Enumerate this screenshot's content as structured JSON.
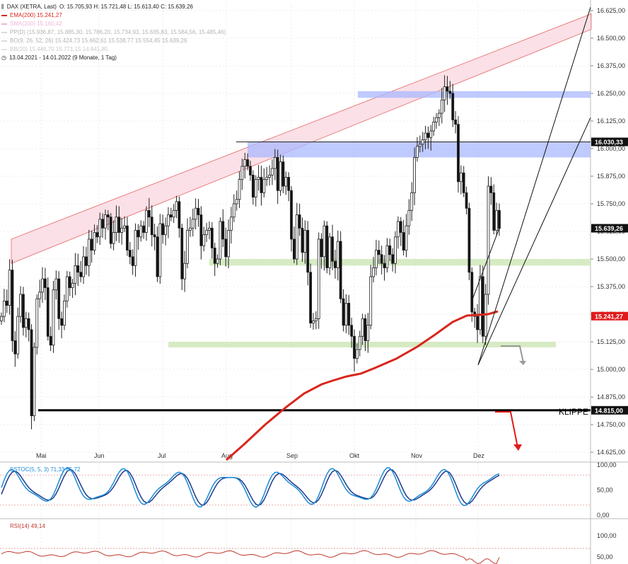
{
  "legend": {
    "instrument": "DAX (XETRA, Last)",
    "ohlc": "O: 15.705,93  H: 15.721,48  L: 15.613,40  C: 15.639,26",
    "ema": "EMA(200)  15.241,27",
    "sma": "SMA(200)  15.160,42",
    "pp": "PP(D)  (15.936,87, 15.885,30, 15.786,20, 15.734,93, 15.635,83, 15.584,56, 15.485,46)",
    "bo": "BO(9, 26, 52, 26)  15.424,73  15.662,61  15.538,77  15.554,45  15.639,26",
    "fib": "BB(20)  15.446,70  15.771,15  14.841,85",
    "range": "13.04.2021 - 14.01.2022  (9 Monate, 1 Tag)"
  },
  "colors": {
    "ema": "#d9261c",
    "channel_fill": "#f9d5df",
    "channel_line": "#e88080",
    "blue_zone": "#aab8ff",
    "green_zone": "#cfe8b8",
    "stoch_fast": "#1a8bd8",
    "stoch_slow": "#1e3a8a",
    "rsi": "#c0392b"
  },
  "chart_data": {
    "type": "candlestick",
    "price_axis_ticks": [
      "16.625,00",
      "16.500,00",
      "16.375,00",
      "16.250,00",
      "16.125,00",
      "16.000,00",
      "15.875,00",
      "15.750,00",
      "15.625,00",
      "15.500,00",
      "15.375,00",
      "15.250,00",
      "15.125,00",
      "15.000,00",
      "14.875,00",
      "14.750,00",
      "14.625,00"
    ],
    "ylim": [
      14590,
      16660
    ],
    "month_labels": [
      "Mai",
      "Jun",
      "Jul",
      "Aug",
      "Sep",
      "Okt",
      "Nov",
      "Dez"
    ],
    "price_markers": [
      {
        "label": "16.030,33",
        "value": 16030.33,
        "style": "dark"
      },
      {
        "label": "15.639,26",
        "value": 15639.26,
        "style": "dark"
      },
      {
        "label": "15.241,27",
        "value": 15241.27,
        "style": "red"
      },
      {
        "label": "14.815,00",
        "value": 14815.0,
        "style": "dark"
      }
    ],
    "annotation": "KLIPPE",
    "closes": [
      15240,
      15310,
      15290,
      15450,
      15130,
      15070,
      15240,
      15340,
      15190,
      15230,
      15180,
      14790,
      15100,
      15320,
      15350,
      15410,
      15370,
      15150,
      15110,
      15360,
      15410,
      15230,
      15200,
      15310,
      15420,
      15370,
      15390,
      15470,
      15440,
      15420,
      15510,
      15470,
      15590,
      15540,
      15620,
      15600,
      15680,
      15640,
      15700,
      15690,
      15570,
      15620,
      15690,
      15620,
      15640,
      15650,
      15540,
      15510,
      15470,
      15630,
      15600,
      15650,
      15620,
      15720,
      15690,
      15610,
      15600,
      15420,
      15660,
      15610,
      15650,
      15700,
      15690,
      15720,
      15760,
      15640,
      15410,
      15480,
      15630,
      15640,
      15680,
      15730,
      15700,
      15560,
      15610,
      15630,
      15640,
      15550,
      15480,
      15500,
      15670,
      15590,
      15510,
      15630,
      15690,
      15750,
      15770,
      15860,
      15920,
      15950,
      15920,
      15880,
      15780,
      15860,
      15870,
      15800,
      15860,
      15870,
      15880,
      15910,
      15960,
      15810,
      15940,
      15830,
      15870,
      15810,
      15590,
      15500,
      15700,
      15640,
      15530,
      15630,
      15440,
      15210,
      15220,
      15230,
      15590,
      15510,
      15650,
      15460,
      15600,
      15490,
      15460,
      15580,
      15320,
      15200,
      15300,
      15200,
      15150,
      15050,
      15090,
      15150,
      15230,
      15130,
      15200,
      15420,
      15460,
      15540,
      15520,
      15480,
      15460,
      15560,
      15520,
      15480,
      15600,
      15670,
      15620,
      15540,
      15650,
      15720,
      15800,
      15960,
      16010,
      16020,
      16040,
      16070,
      16050,
      16080,
      16120,
      16140,
      16160,
      16220,
      16280,
      16260,
      16250,
      16130,
      16110,
      15850,
      15890,
      15800,
      15730,
      15440,
      15260,
      15240,
      15180,
      15420,
      15150,
      15340,
      15830,
      15800,
      15630,
      15720,
      15639
    ],
    "channel": {
      "upper_start": 15590,
      "upper_end": 16610,
      "lower_start": 15480,
      "lower_end": 16540
    },
    "zones": [
      {
        "kind": "resistance",
        "low": 16230,
        "high": 16260
      },
      {
        "kind": "resistance",
        "low": 15960,
        "high": 16030
      },
      {
        "kind": "support",
        "low": 15470,
        "high": 15500
      },
      {
        "kind": "support",
        "low": 15100,
        "high": 15125
      }
    ],
    "trend_lines": [
      {
        "from": 15020,
        "to": 16640
      },
      {
        "from": 15020,
        "to": 16140
      }
    ],
    "horizontal_levels": [
      16030.33,
      14815.0
    ],
    "stoch": {
      "label": "SSTOC(5, 5, 3)  71,33  65,72",
      "axis_ticks": [
        "100,00",
        "50,00",
        "0,00"
      ],
      "ylim": [
        0,
        100
      ]
    },
    "rsi": {
      "label": "RSI(14)  49,14",
      "axis_ticks": [
        "100,00",
        "50,00"
      ],
      "ylim": [
        0,
        100
      ],
      "value": 49.14
    }
  }
}
